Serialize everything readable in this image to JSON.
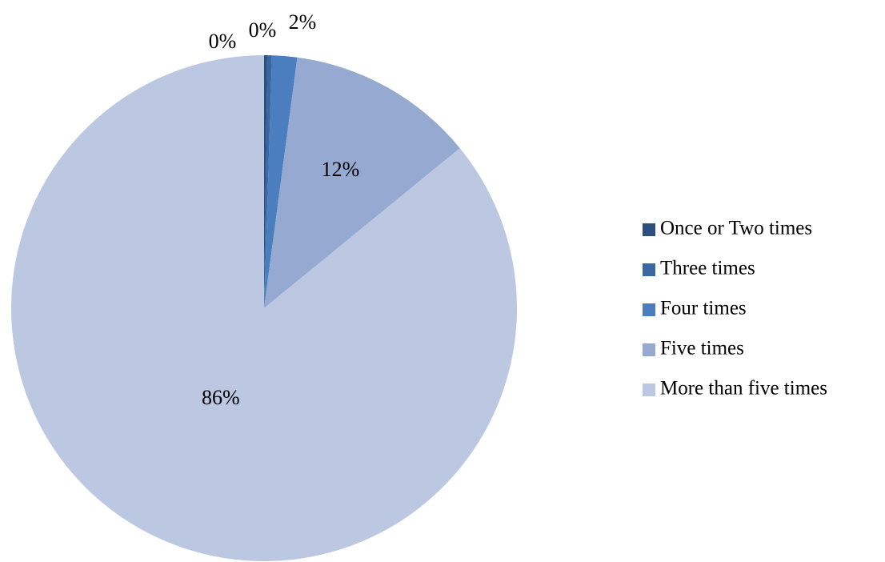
{
  "chart_data": {
    "type": "pie",
    "categories": [
      "Once or Two times",
      "Three times",
      "Four times",
      "Five times",
      "More than five times"
    ],
    "values": [
      0.2,
      0.3,
      1.6,
      12.0,
      85.9
    ],
    "value_labels": [
      "0%",
      "0%",
      "2%",
      "12%",
      "86%"
    ],
    "colors": [
      "#2c4f7f",
      "#3a67a3",
      "#4a7ebf",
      "#95a9d1",
      "#bcc8e1"
    ],
    "legend": "right"
  }
}
